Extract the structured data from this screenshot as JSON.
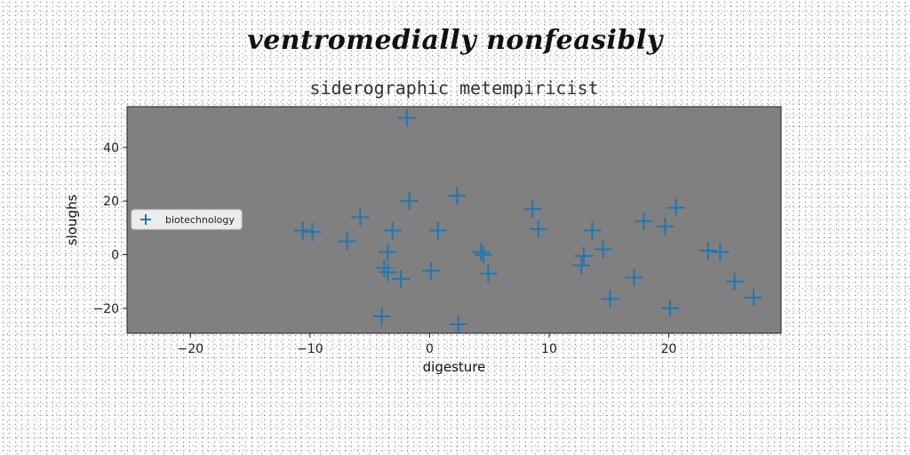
{
  "suptitle": "ventromedially nonfeasibly",
  "chart_data": {
    "type": "scatter",
    "title": "siderographic metempiricist",
    "xlabel": "digesture",
    "ylabel": "sloughs",
    "xlim": [
      -25.3,
      29.4
    ],
    "ylim": [
      -29.3,
      55.2
    ],
    "xticks": [
      -20,
      -10,
      0,
      10,
      20
    ],
    "yticks": [
      -20,
      0,
      20,
      40
    ],
    "grid": false,
    "legend_position": "center-left",
    "background_color": "#808080",
    "series": [
      {
        "name": "biotechnology",
        "marker": "plus",
        "color": "#1f77b4",
        "points": [
          [
            -1.9,
            51
          ],
          [
            -1.7,
            20
          ],
          [
            2.3,
            22
          ],
          [
            -5.8,
            14
          ],
          [
            -10.6,
            9
          ],
          [
            -9.8,
            8.5
          ],
          [
            -3.1,
            9
          ],
          [
            0.7,
            9
          ],
          [
            -6.9,
            5
          ],
          [
            -3.5,
            1
          ],
          [
            -3.8,
            -5
          ],
          [
            -3.5,
            -6.5
          ],
          [
            -2.4,
            -9
          ],
          [
            0.1,
            -6
          ],
          [
            4.3,
            1
          ],
          [
            4.5,
            0
          ],
          [
            4.9,
            -7
          ],
          [
            -4,
            -23
          ],
          [
            2.4,
            -26
          ],
          [
            8.6,
            17
          ],
          [
            9.1,
            9.5
          ],
          [
            13.6,
            9
          ],
          [
            14.5,
            2
          ],
          [
            12.9,
            -0.5
          ],
          [
            12.7,
            -4
          ],
          [
            17.9,
            12.5
          ],
          [
            19.7,
            10.5
          ],
          [
            20.6,
            17.5
          ],
          [
            15.1,
            -16.5
          ],
          [
            17.1,
            -8.5
          ],
          [
            20.1,
            -20
          ],
          [
            23.3,
            1.5
          ],
          [
            24.3,
            1
          ],
          [
            25.5,
            -10
          ],
          [
            27.1,
            -16
          ]
        ]
      }
    ]
  }
}
